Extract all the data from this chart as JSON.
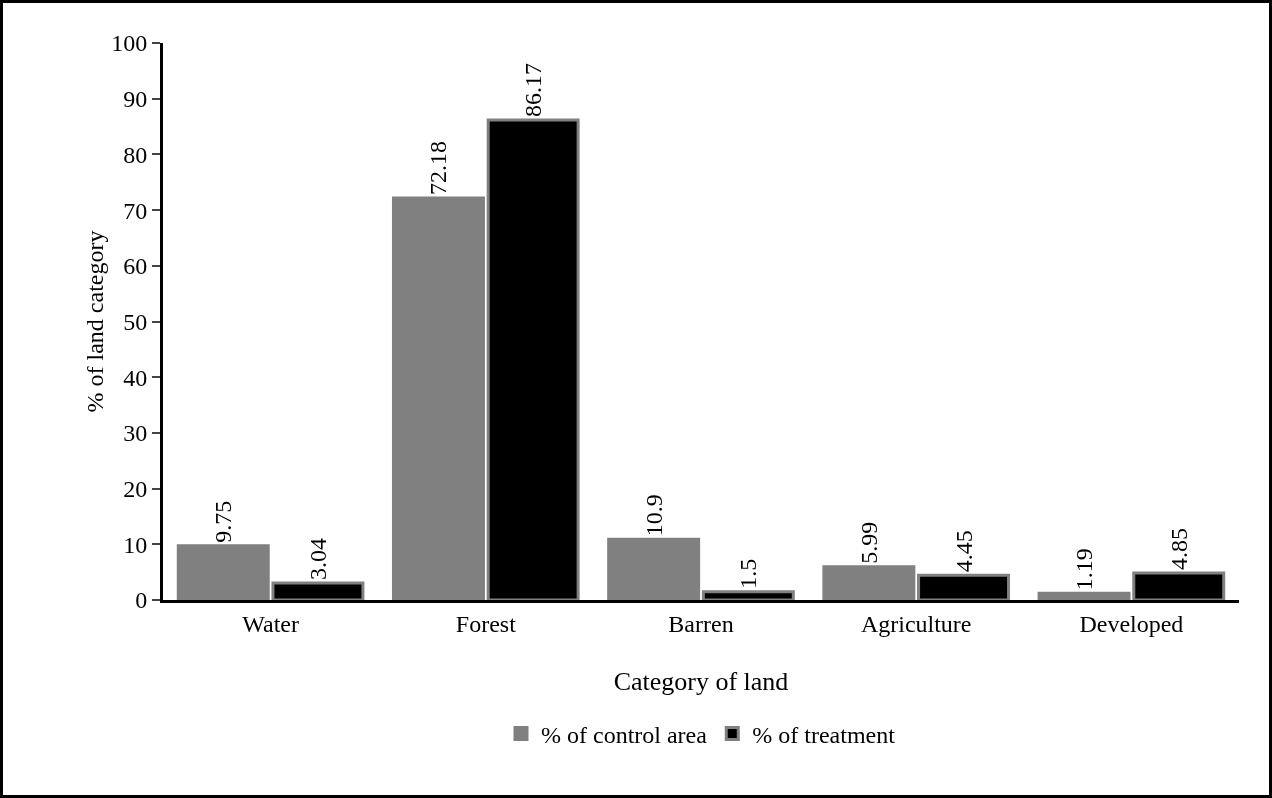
{
  "chart_data": {
    "type": "bar",
    "xlabel": "Category of land",
    "ylabel": "% of land category",
    "categories": [
      "Water",
      "Forest",
      "Barren",
      "Agriculture",
      "Developed"
    ],
    "series": [
      {
        "name": "% of control area",
        "color": "#808080",
        "values": [
          9.75,
          72.18,
          10.9,
          5.99,
          1.19
        ]
      },
      {
        "name": "% of treatment",
        "color": "#000000",
        "values": [
          3.04,
          86.17,
          1.5,
          4.45,
          4.85
        ]
      }
    ],
    "ylim": [
      0,
      100
    ],
    "yticks": [
      0,
      10,
      20,
      30,
      40,
      50,
      60,
      70,
      80,
      90,
      100
    ],
    "grid": false,
    "legend": "bottom",
    "data_labels": true
  }
}
